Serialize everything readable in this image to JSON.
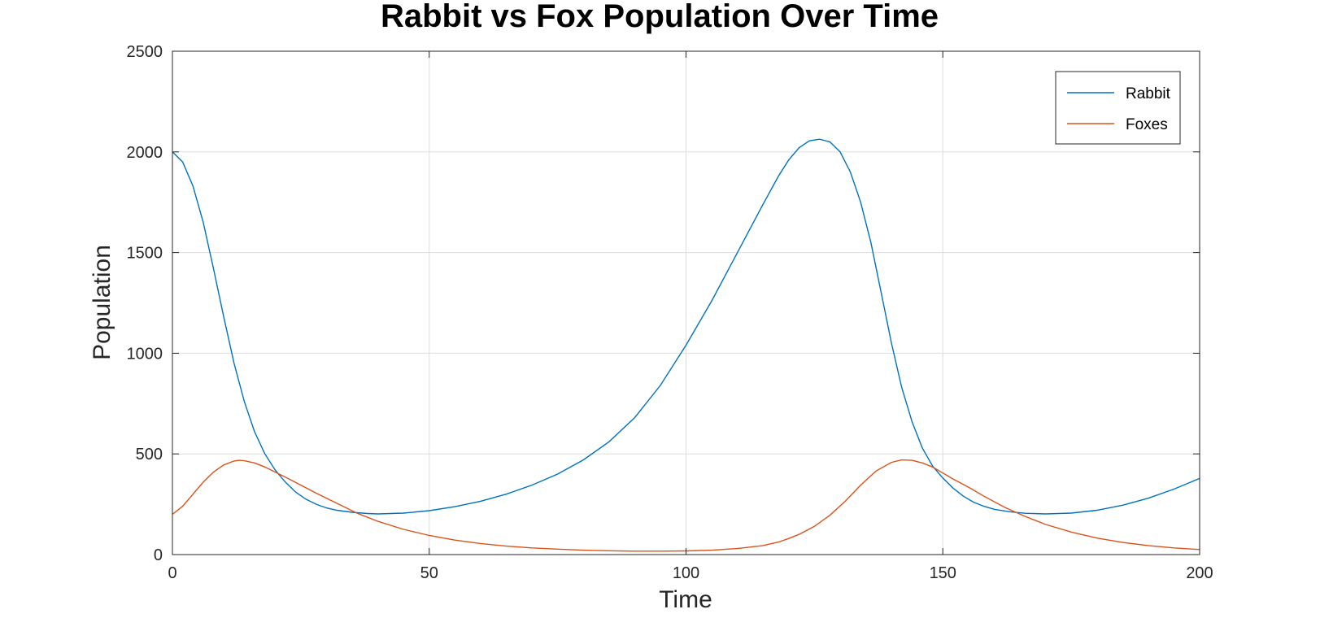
{
  "chart_data": {
    "type": "line",
    "title": "Rabbit vs Fox Population Over Time",
    "xlabel": "Time",
    "ylabel": "Population",
    "xlim": [
      0,
      200
    ],
    "ylim": [
      0,
      2500
    ],
    "xticks": [
      0,
      50,
      100,
      150,
      200
    ],
    "yticks": [
      0,
      500,
      1000,
      1500,
      2000,
      2500
    ],
    "grid": true,
    "legend_position": "top-right",
    "series": [
      {
        "name": "Rabbit",
        "color": "#0072BD",
        "points": [
          [
            0,
            2000
          ],
          [
            2,
            1950
          ],
          [
            4,
            1830
          ],
          [
            6,
            1650
          ],
          [
            8,
            1420
          ],
          [
            10,
            1180
          ],
          [
            12,
            950
          ],
          [
            14,
            760
          ],
          [
            16,
            610
          ],
          [
            18,
            500
          ],
          [
            20,
            420
          ],
          [
            22,
            360
          ],
          [
            24,
            310
          ],
          [
            26,
            275
          ],
          [
            28,
            250
          ],
          [
            30,
            232
          ],
          [
            32,
            220
          ],
          [
            35,
            210
          ],
          [
            38,
            204
          ],
          [
            40,
            202
          ],
          [
            45,
            206
          ],
          [
            50,
            218
          ],
          [
            55,
            238
          ],
          [
            60,
            265
          ],
          [
            65,
            300
          ],
          [
            70,
            345
          ],
          [
            75,
            400
          ],
          [
            80,
            470
          ],
          [
            85,
            560
          ],
          [
            90,
            680
          ],
          [
            95,
            840
          ],
          [
            100,
            1040
          ],
          [
            105,
            1260
          ],
          [
            110,
            1500
          ],
          [
            115,
            1740
          ],
          [
            118,
            1880
          ],
          [
            120,
            1960
          ],
          [
            122,
            2020
          ],
          [
            124,
            2055
          ],
          [
            126,
            2063
          ],
          [
            128,
            2050
          ],
          [
            130,
            2000
          ],
          [
            132,
            1900
          ],
          [
            134,
            1750
          ],
          [
            136,
            1550
          ],
          [
            138,
            1300
          ],
          [
            140,
            1050
          ],
          [
            142,
            830
          ],
          [
            144,
            660
          ],
          [
            146,
            530
          ],
          [
            148,
            440
          ],
          [
            150,
            380
          ],
          [
            152,
            330
          ],
          [
            154,
            290
          ],
          [
            156,
            260
          ],
          [
            158,
            240
          ],
          [
            160,
            225
          ],
          [
            163,
            213
          ],
          [
            166,
            205
          ],
          [
            170,
            202
          ],
          [
            175,
            206
          ],
          [
            180,
            220
          ],
          [
            185,
            245
          ],
          [
            190,
            280
          ],
          [
            195,
            325
          ],
          [
            200,
            378
          ]
        ]
      },
      {
        "name": "Foxes",
        "color": "#D95319",
        "points": [
          [
            0,
            200
          ],
          [
            2,
            240
          ],
          [
            4,
            300
          ],
          [
            6,
            360
          ],
          [
            8,
            410
          ],
          [
            10,
            445
          ],
          [
            12,
            465
          ],
          [
            13,
            468
          ],
          [
            14,
            466
          ],
          [
            16,
            455
          ],
          [
            18,
            435
          ],
          [
            20,
            410
          ],
          [
            22,
            385
          ],
          [
            25,
            345
          ],
          [
            28,
            305
          ],
          [
            32,
            255
          ],
          [
            36,
            205
          ],
          [
            40,
            165
          ],
          [
            45,
            125
          ],
          [
            50,
            95
          ],
          [
            55,
            72
          ],
          [
            60,
            55
          ],
          [
            65,
            42
          ],
          [
            70,
            33
          ],
          [
            75,
            27
          ],
          [
            80,
            22
          ],
          [
            85,
            19
          ],
          [
            90,
            17
          ],
          [
            95,
            17
          ],
          [
            100,
            18
          ],
          [
            105,
            22
          ],
          [
            110,
            30
          ],
          [
            115,
            45
          ],
          [
            118,
            62
          ],
          [
            120,
            80
          ],
          [
            122,
            100
          ],
          [
            125,
            140
          ],
          [
            128,
            195
          ],
          [
            131,
            265
          ],
          [
            134,
            345
          ],
          [
            137,
            415
          ],
          [
            140,
            458
          ],
          [
            142,
            470
          ],
          [
            144,
            468
          ],
          [
            146,
            455
          ],
          [
            148,
            435
          ],
          [
            150,
            405
          ],
          [
            152,
            375
          ],
          [
            155,
            335
          ],
          [
            158,
            290
          ],
          [
            162,
            235
          ],
          [
            166,
            190
          ],
          [
            170,
            150
          ],
          [
            175,
            112
          ],
          [
            180,
            82
          ],
          [
            185,
            60
          ],
          [
            190,
            45
          ],
          [
            195,
            33
          ],
          [
            200,
            25
          ]
        ]
      }
    ]
  }
}
